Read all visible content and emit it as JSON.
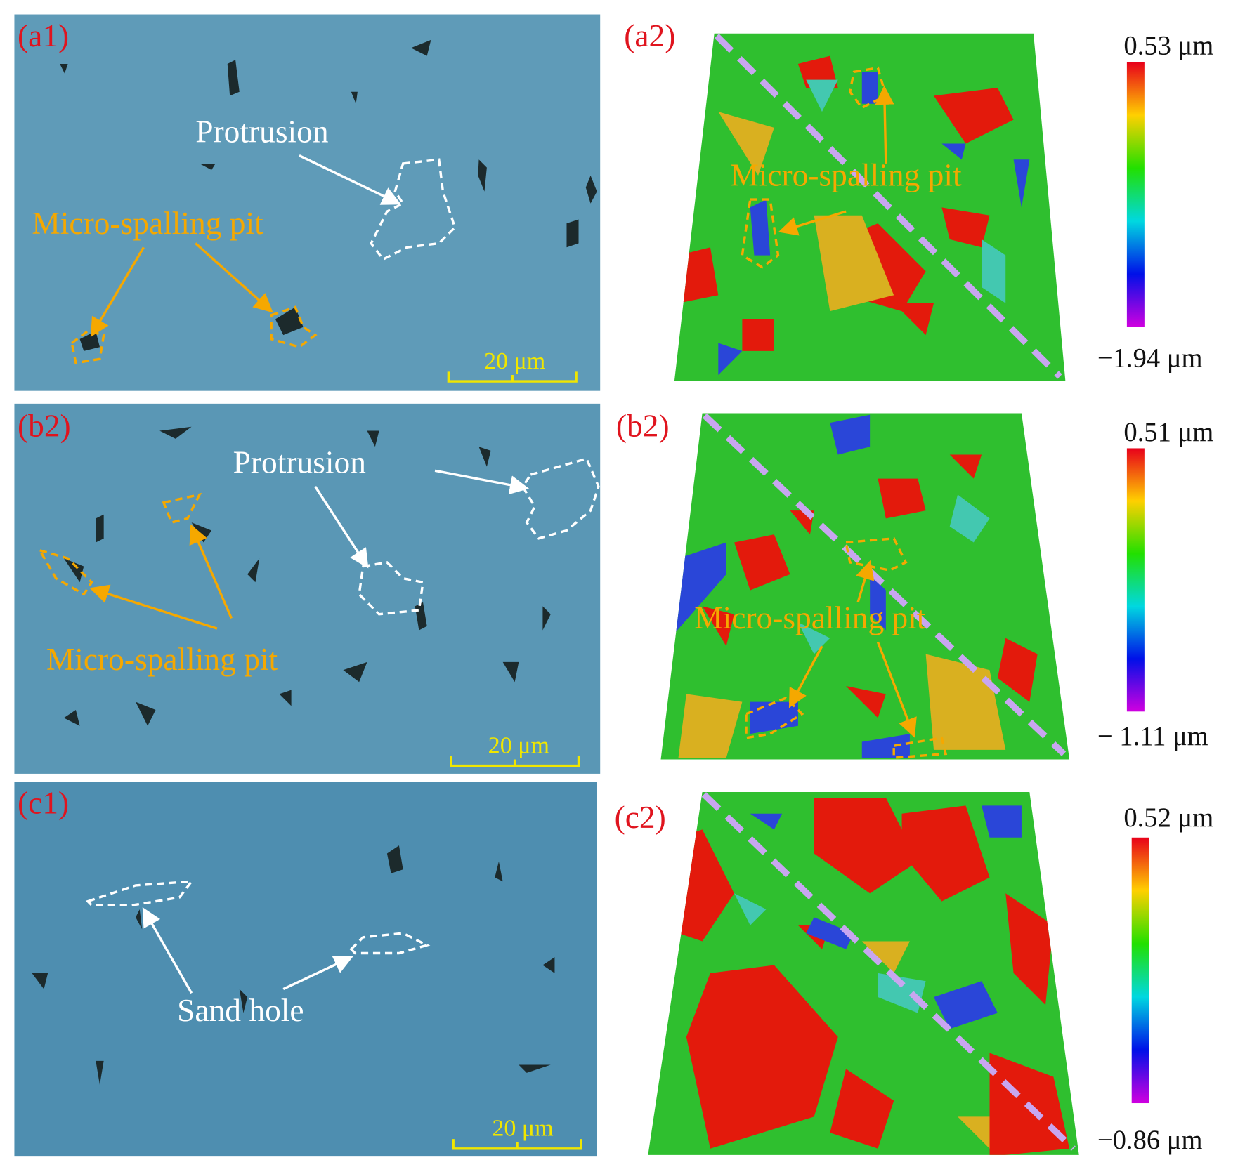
{
  "panels": [
    {
      "label": "(a1)",
      "annotations": [
        "Protrusion",
        "Micro-spalling pit"
      ],
      "scale_bar": "20 μm"
    },
    {
      "label": "(a2)",
      "annotations": [
        "Micro-spalling pit"
      ],
      "colorbar": {
        "max": "0.53 μm",
        "min": "−1.94 μm"
      }
    },
    {
      "label": "(b2)",
      "annotations": [
        "Protrusion",
        "Micro-spalling pit"
      ],
      "scale_bar": "20 μm"
    },
    {
      "label": "(b2)",
      "annotations": [
        "Micro-spalling pit"
      ],
      "colorbar": {
        "max": "0.51 μm",
        "min": "− 1.11 μm"
      }
    },
    {
      "label": "(c1)",
      "annotations": [
        "Sand hole"
      ],
      "scale_bar": "20 μm"
    },
    {
      "label": "(c2)",
      "colorbar": {
        "max": "0.52 μm",
        "min": "−0.86 μm"
      }
    }
  ]
}
